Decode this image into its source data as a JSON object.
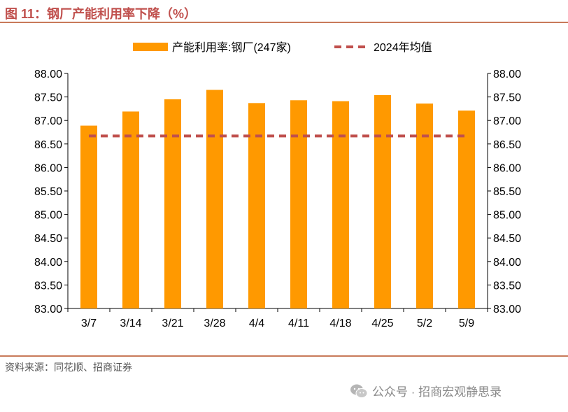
{
  "figure": {
    "title": "图 11：钢厂产能利用率下降（%）",
    "source": "资料来源：同花顺、招商证券",
    "watermark": "公众号 · 招商宏观静思录"
  },
  "colors": {
    "bar": "#FF9900",
    "avg_line": "#C0504D",
    "title": "#C0504D",
    "rule": "#C87A5A"
  },
  "icons": {
    "watermark_icon": "wechat-icon"
  },
  "chart_data": {
    "type": "bar",
    "title": "",
    "xlabel": "",
    "ylabel": "",
    "categories": [
      "3/7",
      "3/14",
      "3/21",
      "3/28",
      "4/4",
      "4/11",
      "4/18",
      "4/25",
      "5/2",
      "5/9"
    ],
    "series": [
      {
        "name": "产能利用率:钢厂(247家)",
        "type": "bar",
        "values": [
          86.89,
          87.19,
          87.45,
          87.65,
          87.37,
          87.43,
          87.41,
          87.54,
          87.36,
          87.21
        ]
      },
      {
        "name": "2024年均值",
        "type": "line",
        "style": "dashed",
        "values": [
          86.67,
          86.67,
          86.67,
          86.67,
          86.67,
          86.67,
          86.67,
          86.67,
          86.67,
          86.67
        ]
      }
    ],
    "ylim": [
      83.0,
      88.0
    ],
    "y_ticks": [
      "83.00",
      "83.50",
      "84.00",
      "84.50",
      "85.00",
      "85.50",
      "86.00",
      "86.50",
      "87.00",
      "87.50",
      "88.00"
    ],
    "y2_ticks": [
      "83.00",
      "83.50",
      "84.00",
      "84.50",
      "85.00",
      "85.50",
      "86.00",
      "86.50",
      "87.00",
      "87.50",
      "88.00"
    ],
    "grid": false,
    "legend_position": "top-center"
  }
}
